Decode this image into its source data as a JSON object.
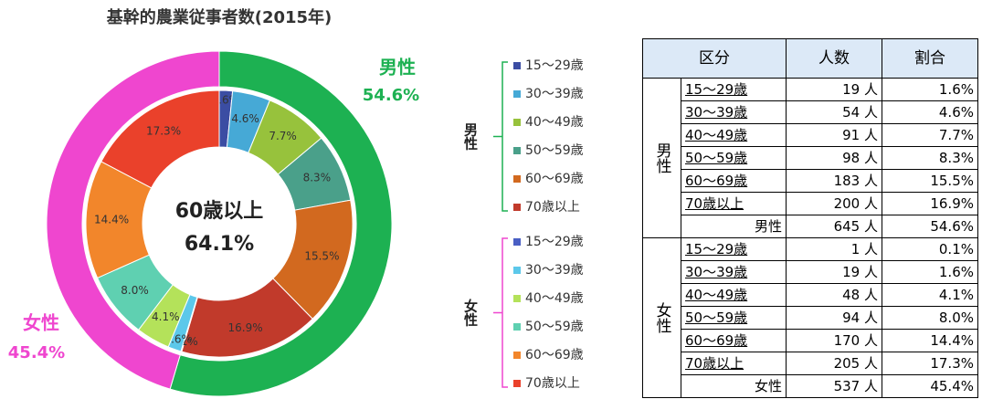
{
  "chart_data": {
    "type": "donut",
    "title": "基幹的農業従事者数(2015年)",
    "center_text": [
      "60歳以上",
      "64.1%"
    ],
    "outer": {
      "categories": [
        "男性",
        "女性"
      ],
      "values": [
        54.6,
        45.4
      ],
      "value_labels": [
        "54.6%",
        "45.4%"
      ],
      "colors": [
        "#1db152",
        "#ef46cf"
      ]
    },
    "series": [
      {
        "name": "男性",
        "color": "#1db152",
        "categories": [
          "15～29歳",
          "30～39歳",
          "40～49歳",
          "50～59歳",
          "60～69歳",
          "70歳以上"
        ],
        "values": [
          1.6,
          4.6,
          7.7,
          8.3,
          15.5,
          16.9
        ],
        "value_labels": [
          "1.6%",
          "4.6%",
          "7.7%",
          "8.3%",
          "15.5%",
          "16.9%"
        ],
        "colors": [
          "#3b4da3",
          "#46a9d6",
          "#97c23c",
          "#4aa08a",
          "#d2691f",
          "#c13a2b"
        ]
      },
      {
        "name": "女性",
        "color": "#ef46cf",
        "categories": [
          "15～29歳",
          "30～39歳",
          "40～49歳",
          "50～59歳",
          "60～69歳",
          "70歳以上"
        ],
        "values": [
          0.1,
          1.6,
          4.1,
          8.0,
          14.4,
          17.3
        ],
        "value_labels": [
          "0.1%",
          "1.6%",
          "4.1%",
          "8.0%",
          "14.4%",
          "17.3%"
        ],
        "colors": [
          "#4a5fc4",
          "#5cc8ea",
          "#b4e25a",
          "#5fd0b1",
          "#f2862b",
          "#ea412b"
        ]
      }
    ]
  },
  "table": {
    "headers": [
      "区分",
      "人数",
      "割合"
    ],
    "groups": [
      {
        "name": "男性",
        "rows": [
          [
            "15～29歳",
            "19 人",
            "1.6%"
          ],
          [
            "30～39歳",
            "54 人",
            "4.6%"
          ],
          [
            "40～49歳",
            "91 人",
            "7.7%"
          ],
          [
            "50～59歳",
            "98 人",
            "8.3%"
          ],
          [
            "60～69歳",
            "183 人",
            "15.5%"
          ],
          [
            "70歳以上",
            "200 人",
            "16.9%"
          ]
        ],
        "total": [
          "男性",
          "645 人",
          "54.6%"
        ]
      },
      {
        "name": "女性",
        "rows": [
          [
            "15～29歳",
            "1 人",
            "0.1%"
          ],
          [
            "30～39歳",
            "19 人",
            "1.6%"
          ],
          [
            "40～49歳",
            "48 人",
            "4.1%"
          ],
          [
            "50～59歳",
            "94 人",
            "8.0%"
          ],
          [
            "60～69歳",
            "170 人",
            "14.4%"
          ],
          [
            "70歳以上",
            "205 人",
            "17.3%"
          ]
        ],
        "total": [
          "女性",
          "537 人",
          "45.4%"
        ]
      }
    ]
  }
}
